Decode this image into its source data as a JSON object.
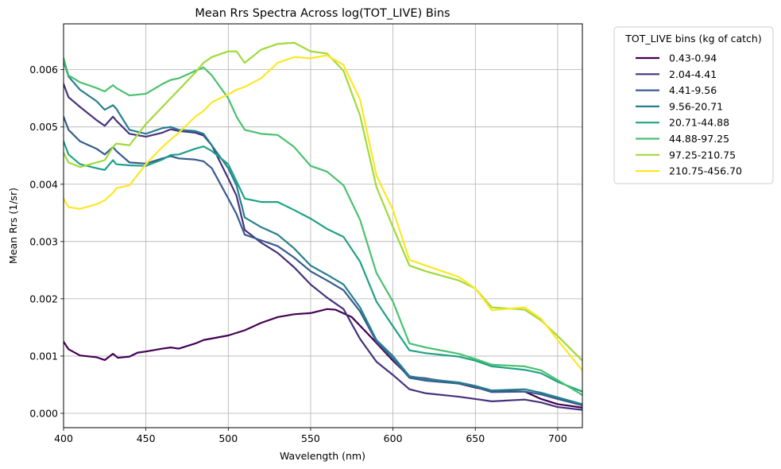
{
  "chart_data": {
    "type": "line",
    "title": "Mean Rrs Spectra Across log(TOT_LIVE) Bins",
    "xlabel": "Wavelength (nm)",
    "ylabel": "Mean Rrs (1/sr)",
    "xlim": [
      400,
      715
    ],
    "ylim": [
      -0.00025,
      0.0068
    ],
    "xticks": [
      400,
      450,
      500,
      550,
      600,
      650,
      700
    ],
    "xtick_labels": [
      "400",
      "450",
      "500",
      "550",
      "600",
      "650",
      "700"
    ],
    "yticks": [
      0,
      0.001,
      0.002,
      0.003,
      0.004,
      0.005,
      0.006
    ],
    "ytick_labels": [
      "0.000",
      "0.001",
      "0.002",
      "0.003",
      "0.004",
      "0.005",
      "0.006"
    ],
    "grid": true,
    "legend": {
      "title": "TOT_LIVE bins (kg of catch)",
      "placement": "outside-right"
    },
    "series": [
      {
        "name": "0.43-0.94",
        "color": "#440154",
        "x": [
          400,
          403,
          410,
          420,
          425,
          430,
          433,
          440,
          445,
          450,
          460,
          465,
          470,
          480,
          485,
          500,
          510,
          520,
          530,
          540,
          550,
          560,
          565,
          575,
          585,
          600,
          610,
          620,
          640,
          650,
          660,
          680,
          690,
          700,
          715
        ],
        "y": [
          0.00125,
          0.00112,
          0.00101,
          0.00098,
          0.00093,
          0.00104,
          0.00097,
          0.00099,
          0.00106,
          0.00108,
          0.00113,
          0.00115,
          0.00113,
          0.00122,
          0.00128,
          0.00136,
          0.00145,
          0.00158,
          0.00168,
          0.00173,
          0.00175,
          0.00182,
          0.00181,
          0.00168,
          0.00138,
          0.00092,
          0.00064,
          0.00061,
          0.00052,
          0.00045,
          0.00039,
          0.00038,
          0.00025,
          0.00016,
          0.0001
        ]
      },
      {
        "name": "2.04-4.41",
        "color": "#46327e",
        "x": [
          400,
          403,
          410,
          420,
          425,
          430,
          432,
          440,
          450,
          460,
          465,
          470,
          480,
          485,
          490,
          500,
          505,
          510,
          520,
          530,
          540,
          550,
          560,
          570,
          580,
          590,
          600,
          610,
          620,
          640,
          650,
          660,
          680,
          690,
          700,
          715
        ],
        "y": [
          0.00575,
          0.00552,
          0.00535,
          0.00512,
          0.00502,
          0.00518,
          0.00511,
          0.00488,
          0.00483,
          0.0049,
          0.00496,
          0.00493,
          0.0049,
          0.00485,
          0.00468,
          0.0041,
          0.0038,
          0.0032,
          0.00298,
          0.0028,
          0.00255,
          0.00225,
          0.00202,
          0.00182,
          0.0013,
          0.0009,
          0.00067,
          0.00042,
          0.00035,
          0.00029,
          0.00025,
          0.00021,
          0.00024,
          0.00019,
          0.00011,
          6e-05
        ]
      },
      {
        "name": "4.41-9.56",
        "color": "#365c8d",
        "x": [
          400,
          403,
          410,
          420,
          425,
          430,
          432,
          440,
          450,
          460,
          465,
          470,
          480,
          485,
          490,
          500,
          505,
          510,
          520,
          530,
          540,
          550,
          560,
          570,
          580,
          590,
          600,
          610,
          620,
          640,
          650,
          660,
          680,
          690,
          700,
          715
        ],
        "y": [
          0.00518,
          0.00495,
          0.00475,
          0.00462,
          0.00452,
          0.00465,
          0.00458,
          0.00438,
          0.00436,
          0.00445,
          0.00449,
          0.00445,
          0.00443,
          0.0044,
          0.00428,
          0.00375,
          0.00348,
          0.00312,
          0.00302,
          0.00292,
          0.00272,
          0.00248,
          0.00232,
          0.00215,
          0.00178,
          0.00125,
          0.00095,
          0.00062,
          0.00057,
          0.00052,
          0.00046,
          0.00037,
          0.00038,
          0.00033,
          0.00025,
          0.00014
        ]
      },
      {
        "name": "9.56-20.71",
        "color": "#277f8e",
        "x": [
          400,
          403,
          410,
          420,
          425,
          430,
          432,
          440,
          450,
          460,
          465,
          470,
          480,
          485,
          490,
          500,
          505,
          510,
          520,
          530,
          540,
          550,
          560,
          570,
          580,
          590,
          600,
          610,
          620,
          640,
          650,
          660,
          680,
          690,
          700,
          715
        ],
        "y": [
          0.00615,
          0.00588,
          0.00565,
          0.00545,
          0.0053,
          0.00538,
          0.00532,
          0.00495,
          0.00488,
          0.00498,
          0.005,
          0.00495,
          0.00493,
          0.00488,
          0.00468,
          0.00428,
          0.00398,
          0.00342,
          0.00325,
          0.00312,
          0.00288,
          0.00258,
          0.00242,
          0.00225,
          0.00185,
          0.00128,
          0.001,
          0.00065,
          0.0006,
          0.00054,
          0.00048,
          0.0004,
          0.00042,
          0.00036,
          0.00028,
          0.00016
        ]
      },
      {
        "name": "20.71-44.88",
        "color": "#1fa187",
        "x": [
          400,
          403,
          410,
          420,
          425,
          430,
          432,
          440,
          450,
          460,
          465,
          470,
          480,
          485,
          490,
          500,
          505,
          510,
          520,
          530,
          540,
          550,
          560,
          570,
          580,
          590,
          600,
          610,
          620,
          640,
          650,
          660,
          680,
          690,
          700,
          715
        ],
        "y": [
          0.00475,
          0.00452,
          0.00435,
          0.00428,
          0.00425,
          0.00442,
          0.00435,
          0.00433,
          0.00432,
          0.00443,
          0.00451,
          0.00452,
          0.00462,
          0.00466,
          0.00458,
          0.00435,
          0.00405,
          0.00375,
          0.00369,
          0.00369,
          0.00355,
          0.0034,
          0.00322,
          0.00308,
          0.00265,
          0.00195,
          0.00152,
          0.0011,
          0.00105,
          0.00099,
          0.00092,
          0.00082,
          0.00076,
          0.0007,
          0.00055,
          0.00038
        ]
      },
      {
        "name": "44.88-97.25",
        "color": "#4ac16d",
        "x": [
          400,
          403,
          410,
          420,
          425,
          430,
          432,
          440,
          450,
          460,
          465,
          470,
          480,
          485,
          490,
          500,
          505,
          510,
          520,
          530,
          540,
          550,
          560,
          570,
          580,
          590,
          600,
          610,
          620,
          640,
          650,
          660,
          680,
          690,
          700,
          715
        ],
        "y": [
          0.0062,
          0.0059,
          0.00578,
          0.00568,
          0.00562,
          0.00573,
          0.00568,
          0.00555,
          0.00558,
          0.00575,
          0.00582,
          0.00585,
          0.00598,
          0.00604,
          0.0059,
          0.0055,
          0.00518,
          0.00495,
          0.00488,
          0.00486,
          0.00465,
          0.00432,
          0.00422,
          0.00398,
          0.00338,
          0.00245,
          0.00195,
          0.00122,
          0.00115,
          0.00104,
          0.00095,
          0.00085,
          0.00082,
          0.00075,
          0.00058,
          0.00032
        ]
      },
      {
        "name": "97.25-210.75",
        "color": "#a0da39",
        "x": [
          400,
          403,
          410,
          420,
          425,
          430,
          432,
          440,
          450,
          460,
          465,
          470,
          480,
          485,
          490,
          500,
          505,
          510,
          520,
          530,
          540,
          550,
          560,
          570,
          580,
          590,
          600,
          610,
          620,
          640,
          650,
          660,
          680,
          690,
          700,
          715
        ],
        "y": [
          0.00455,
          0.00438,
          0.0043,
          0.00438,
          0.00442,
          0.00465,
          0.00471,
          0.00468,
          0.00505,
          0.00535,
          0.0055,
          0.00565,
          0.00595,
          0.00612,
          0.00622,
          0.00632,
          0.00632,
          0.00612,
          0.00635,
          0.00645,
          0.00647,
          0.00632,
          0.00628,
          0.00598,
          0.0052,
          0.00395,
          0.00325,
          0.00258,
          0.00248,
          0.00232,
          0.00218,
          0.00185,
          0.00181,
          0.00162,
          0.00135,
          0.00092
        ]
      },
      {
        "name": "210.75-456.70",
        "color": "#fde725",
        "x": [
          400,
          403,
          410,
          420,
          425,
          430,
          432,
          440,
          450,
          460,
          465,
          470,
          480,
          485,
          490,
          500,
          505,
          510,
          520,
          530,
          540,
          550,
          560,
          570,
          580,
          590,
          600,
          610,
          620,
          640,
          650,
          660,
          680,
          690,
          700,
          715
        ],
        "y": [
          0.00375,
          0.0036,
          0.00357,
          0.00365,
          0.00372,
          0.00385,
          0.00393,
          0.00398,
          0.00435,
          0.00465,
          0.00478,
          0.0049,
          0.00518,
          0.00528,
          0.00543,
          0.00557,
          0.00565,
          0.0057,
          0.00585,
          0.00612,
          0.00622,
          0.0062,
          0.00625,
          0.00608,
          0.00548,
          0.00415,
          0.00355,
          0.00268,
          0.00258,
          0.00238,
          0.00218,
          0.0018,
          0.00185,
          0.00165,
          0.00128,
          0.00075
        ]
      }
    ]
  }
}
